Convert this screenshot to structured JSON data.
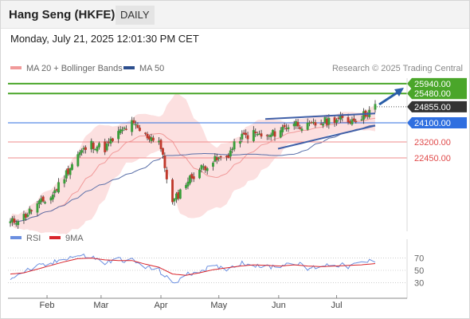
{
  "header": {
    "title": "Hang Seng (HKFE)",
    "period": "DAILY"
  },
  "datetime": "Monday, July 21, 2025 12:01:30 PM CET",
  "legend": {
    "bollinger": "MA 20 + Bollinger Bands",
    "ma50": "MA 50",
    "credit": "Research © 2025 Trading Central"
  },
  "rsi_legend": {
    "rsi": "RSI",
    "ma": "9MA"
  },
  "colors": {
    "bull": "#3a9e3a",
    "bear": "#c0392b",
    "boll_fill": "#fbd5d5",
    "boll_line": "#f19a9a",
    "ma50": "#5a6fa8",
    "resistance": "#4aa62a",
    "pivot": "#2f6fe0",
    "support": "#ef8b8b",
    "price_tag": "#333333",
    "rsi": "#6b8fe0",
    "rsi_ma": "#d9242b",
    "channel": "#4060a8",
    "arrow": "#2a5ea8"
  },
  "chart_data": [
    {
      "type": "candlestick",
      "title": "Hang Seng (HKFE)",
      "timeframe": "daily",
      "x_labels": [
        "Feb",
        "Mar",
        "Apr",
        "May",
        "Jun",
        "Jul"
      ],
      "ylim": [
        19300,
        26200
      ],
      "last_price": 24855,
      "close_path": [
        [
          "2025-01-13",
          19400
        ],
        [
          "2025-01-20",
          19700
        ],
        [
          "2025-01-27",
          20250
        ],
        [
          "2025-02-03",
          20600
        ],
        [
          "2025-02-10",
          21600
        ],
        [
          "2025-02-17",
          22600
        ],
        [
          "2025-02-24",
          23100
        ],
        [
          "2025-03-03",
          22900
        ],
        [
          "2025-03-10",
          23600
        ],
        [
          "2025-03-17",
          24050
        ],
        [
          "2025-03-24",
          23500
        ],
        [
          "2025-03-31",
          23300
        ],
        [
          "2025-04-07",
          20300
        ],
        [
          "2025-04-14",
          21300
        ],
        [
          "2025-04-21",
          21900
        ],
        [
          "2025-04-28",
          22300
        ],
        [
          "2025-05-05",
          22500
        ],
        [
          "2025-05-12",
          23400
        ],
        [
          "2025-05-19",
          23600
        ],
        [
          "2025-05-26",
          23400
        ],
        [
          "2025-06-02",
          23800
        ],
        [
          "2025-06-09",
          24100
        ],
        [
          "2025-06-16",
          23900
        ],
        [
          "2025-06-23",
          24100
        ],
        [
          "2025-06-30",
          24300
        ],
        [
          "2025-07-07",
          24200
        ],
        [
          "2025-07-14",
          24400
        ],
        [
          "2025-07-21",
          24855
        ]
      ],
      "levels": [
        {
          "value": "25940.00",
          "type": "resistance"
        },
        {
          "value": "25480.00",
          "type": "resistance"
        },
        {
          "value": "24855.00",
          "type": "last"
        },
        {
          "value": "24100.00",
          "type": "pivot"
        },
        {
          "value": "23200.00",
          "type": "support"
        },
        {
          "value": "22450.00",
          "type": "support"
        }
      ],
      "indicators": [
        "MA 20 + Bollinger Bands",
        "MA 50"
      ],
      "annotations": [
        "ascending channel",
        "up arrow"
      ]
    },
    {
      "type": "line",
      "title": "RSI",
      "series": [
        {
          "name": "RSI"
        },
        {
          "name": "9MA"
        }
      ],
      "y_ticks": [
        "70",
        "50",
        "30"
      ],
      "ylim": [
        15,
        85
      ],
      "rsi_path": [
        [
          "2025-01-13",
          38
        ],
        [
          "2025-01-20",
          48
        ],
        [
          "2025-01-27",
          56
        ],
        [
          "2025-02-03",
          60
        ],
        [
          "2025-02-10",
          70
        ],
        [
          "2025-02-17",
          74
        ],
        [
          "2025-02-24",
          72
        ],
        [
          "2025-03-03",
          62
        ],
        [
          "2025-03-10",
          68
        ],
        [
          "2025-03-17",
          66
        ],
        [
          "2025-03-24",
          55
        ],
        [
          "2025-03-31",
          50
        ],
        [
          "2025-04-07",
          28
        ],
        [
          "2025-04-14",
          42
        ],
        [
          "2025-04-21",
          50
        ],
        [
          "2025-04-28",
          55
        ],
        [
          "2025-05-05",
          53
        ],
        [
          "2025-05-12",
          62
        ],
        [
          "2025-05-19",
          60
        ],
        [
          "2025-05-26",
          55
        ],
        [
          "2025-06-02",
          58
        ],
        [
          "2025-06-09",
          64
        ],
        [
          "2025-06-16",
          52
        ],
        [
          "2025-06-23",
          58
        ],
        [
          "2025-06-30",
          60
        ],
        [
          "2025-07-07",
          56
        ],
        [
          "2025-07-14",
          62
        ],
        [
          "2025-07-21",
          66
        ]
      ],
      "rsi_ma_path": [
        [
          "2025-01-13",
          44
        ],
        [
          "2025-01-20",
          46
        ],
        [
          "2025-01-27",
          52
        ],
        [
          "2025-02-03",
          58
        ],
        [
          "2025-02-10",
          64
        ],
        [
          "2025-02-17",
          69
        ],
        [
          "2025-02-24",
          70
        ],
        [
          "2025-03-03",
          67
        ],
        [
          "2025-03-10",
          66
        ],
        [
          "2025-03-17",
          66
        ],
        [
          "2025-03-24",
          60
        ],
        [
          "2025-03-31",
          55
        ],
        [
          "2025-04-07",
          44
        ],
        [
          "2025-04-14",
          42
        ],
        [
          "2025-04-21",
          46
        ],
        [
          "2025-04-28",
          51
        ],
        [
          "2025-05-05",
          54
        ],
        [
          "2025-05-12",
          57
        ],
        [
          "2025-05-19",
          59
        ],
        [
          "2025-05-26",
          58
        ],
        [
          "2025-06-02",
          57
        ],
        [
          "2025-06-09",
          59
        ],
        [
          "2025-06-16",
          57
        ],
        [
          "2025-06-23",
          56
        ],
        [
          "2025-06-30",
          57
        ],
        [
          "2025-07-07",
          58
        ],
        [
          "2025-07-14",
          59
        ],
        [
          "2025-07-21",
          61
        ]
      ]
    }
  ]
}
